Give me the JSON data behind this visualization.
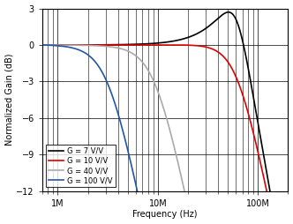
{
  "title": "",
  "xlabel": "Frequency (Hz)",
  "ylabel": "Normalized Gain (dB)",
  "xlim": [
    700000,
    200000000
  ],
  "ylim": [
    -12,
    3
  ],
  "yticks": [
    3,
    0,
    -3,
    -6,
    -9,
    -12
  ],
  "background_color": "#ffffff",
  "grid_color": "#000000",
  "curves": [
    {
      "label": "G = 7 V/V",
      "color": "#000000",
      "lw": 1.2,
      "G": 7,
      "f3db": 75000000,
      "Q": 1.25,
      "f0_factor": 0.82
    },
    {
      "label": "G = 10 V/V",
      "color": "#dd0000",
      "lw": 1.2,
      "G": 10,
      "f3db": 62000000,
      "Q": 0.72,
      "f0_factor": 1.0
    },
    {
      "label": "G = 40 V/V",
      "color": "#aaaaaa",
      "lw": 1.2,
      "G": 40,
      "f3db": 9500000,
      "Q": 0.68,
      "f0_factor": 1.0
    },
    {
      "label": "G = 100 V/V",
      "color": "#2255aa",
      "lw": 1.2,
      "G": 100,
      "f3db": 3200000,
      "Q": 0.68,
      "f0_factor": 1.0
    }
  ]
}
